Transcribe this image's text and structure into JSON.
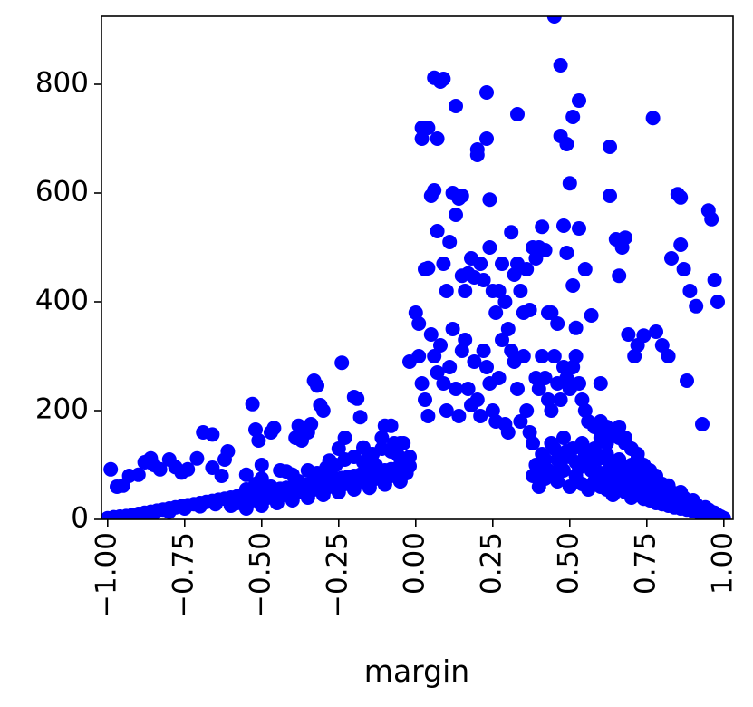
{
  "chart_data": {
    "type": "scatter",
    "xlabel": "margin",
    "ylabel": "",
    "xlim": [
      -1.02,
      1.03
    ],
    "ylim": [
      0,
      925
    ],
    "grid": false,
    "marker_color": "#0000ff",
    "x_ticks": [
      -1.0,
      -0.75,
      -0.5,
      -0.25,
      0.0,
      0.25,
      0.5,
      0.75,
      1.0
    ],
    "x_tick_labels": [
      "−1.00",
      "−0.75",
      "−0.50",
      "−0.25",
      "0.00",
      "0.25",
      "0.50",
      "0.75",
      "1.00"
    ],
    "y_ticks": [
      0,
      200,
      400,
      600,
      800
    ],
    "y_tick_labels": [
      "0",
      "200",
      "400",
      "600",
      "800"
    ],
    "points": [
      [
        -0.99,
        92
      ],
      [
        -0.97,
        60
      ],
      [
        -0.95,
        62
      ],
      [
        -0.93,
        80
      ],
      [
        -0.9,
        82
      ],
      [
        -0.88,
        105
      ],
      [
        -0.86,
        112
      ],
      [
        -0.85,
        100
      ],
      [
        -0.83,
        92
      ],
      [
        -0.8,
        110
      ],
      [
        -0.78,
        96
      ],
      [
        -0.76,
        86
      ],
      [
        -0.74,
        92
      ],
      [
        -0.71,
        112
      ],
      [
        -0.69,
        160
      ],
      [
        -0.66,
        156
      ],
      [
        -0.66,
        95
      ],
      [
        -0.63,
        80
      ],
      [
        -0.62,
        110
      ],
      [
        -0.61,
        125
      ],
      [
        -0.55,
        82
      ],
      [
        -0.53,
        212
      ],
      [
        -0.52,
        165
      ],
      [
        -0.51,
        145
      ],
      [
        -0.5,
        100
      ],
      [
        -0.47,
        160
      ],
      [
        -0.46,
        168
      ],
      [
        -0.44,
        90
      ],
      [
        -0.42,
        88
      ],
      [
        -0.4,
        82
      ],
      [
        -0.39,
        150
      ],
      [
        -0.38,
        172
      ],
      [
        -0.37,
        145
      ],
      [
        -0.35,
        160
      ],
      [
        -0.34,
        175
      ],
      [
        -0.33,
        255
      ],
      [
        -0.32,
        246
      ],
      [
        -0.31,
        210
      ],
      [
        -0.3,
        200
      ],
      [
        -0.28,
        108
      ],
      [
        -0.27,
        78
      ],
      [
        -0.25,
        130
      ],
      [
        -0.24,
        288
      ],
      [
        -0.23,
        150
      ],
      [
        -0.2,
        225
      ],
      [
        -0.19,
        222
      ],
      [
        -0.18,
        188
      ],
      [
        -0.17,
        132
      ],
      [
        -0.15,
        120
      ],
      [
        -0.13,
        100
      ],
      [
        -0.11,
        150
      ],
      [
        -0.1,
        172
      ],
      [
        -0.08,
        172
      ],
      [
        -0.07,
        140
      ],
      [
        -0.06,
        120
      ],
      [
        -0.05,
        112
      ],
      [
        -0.04,
        140
      ],
      [
        -0.03,
        98
      ],
      [
        -0.02,
        290
      ],
      [
        0.0,
        380
      ],
      [
        0.01,
        360
      ],
      [
        0.02,
        700
      ],
      [
        0.02,
        720
      ],
      [
        0.03,
        460
      ],
      [
        0.04,
        462
      ],
      [
        0.04,
        720
      ],
      [
        0.05,
        595
      ],
      [
        0.06,
        605
      ],
      [
        0.06,
        812
      ],
      [
        0.07,
        700
      ],
      [
        0.07,
        530
      ],
      [
        0.08,
        805
      ],
      [
        0.09,
        810
      ],
      [
        0.09,
        470
      ],
      [
        0.1,
        420
      ],
      [
        0.11,
        510
      ],
      [
        0.12,
        600
      ],
      [
        0.13,
        760
      ],
      [
        0.13,
        560
      ],
      [
        0.14,
        590
      ],
      [
        0.15,
        595
      ],
      [
        0.15,
        448
      ],
      [
        0.16,
        420
      ],
      [
        0.17,
        452
      ],
      [
        0.18,
        480
      ],
      [
        0.19,
        445
      ],
      [
        0.2,
        680
      ],
      [
        0.2,
        670
      ],
      [
        0.21,
        470
      ],
      [
        0.22,
        440
      ],
      [
        0.23,
        785
      ],
      [
        0.23,
        700
      ],
      [
        0.24,
        588
      ],
      [
        0.24,
        500
      ],
      [
        0.25,
        420
      ],
      [
        0.26,
        380
      ],
      [
        0.27,
        420
      ],
      [
        0.28,
        470
      ],
      [
        0.29,
        400
      ],
      [
        0.3,
        350
      ],
      [
        0.31,
        528
      ],
      [
        0.32,
        450
      ],
      [
        0.33,
        745
      ],
      [
        0.33,
        470
      ],
      [
        0.34,
        420
      ],
      [
        0.35,
        380
      ],
      [
        0.36,
        460
      ],
      [
        0.37,
        385
      ],
      [
        0.38,
        500
      ],
      [
        0.39,
        480
      ],
      [
        0.4,
        500
      ],
      [
        0.41,
        538
      ],
      [
        0.42,
        495
      ],
      [
        0.43,
        380
      ],
      [
        0.44,
        380
      ],
      [
        0.45,
        925
      ],
      [
        0.46,
        360
      ],
      [
        0.47,
        835
      ],
      [
        0.47,
        705
      ],
      [
        0.48,
        540
      ],
      [
        0.49,
        690
      ],
      [
        0.49,
        490
      ],
      [
        0.5,
        618
      ],
      [
        0.51,
        740
      ],
      [
        0.51,
        430
      ],
      [
        0.52,
        352
      ],
      [
        0.53,
        770
      ],
      [
        0.53,
        535
      ],
      [
        0.55,
        460
      ],
      [
        0.57,
        375
      ],
      [
        0.6,
        250
      ],
      [
        0.63,
        595
      ],
      [
        0.63,
        685
      ],
      [
        0.65,
        515
      ],
      [
        0.66,
        448
      ],
      [
        0.67,
        500
      ],
      [
        0.68,
        518
      ],
      [
        0.69,
        340
      ],
      [
        0.71,
        300
      ],
      [
        0.72,
        320
      ],
      [
        0.74,
        338
      ],
      [
        0.77,
        738
      ],
      [
        0.78,
        345
      ],
      [
        0.8,
        320
      ],
      [
        0.82,
        300
      ],
      [
        0.83,
        480
      ],
      [
        0.85,
        598
      ],
      [
        0.86,
        592
      ],
      [
        0.86,
        505
      ],
      [
        0.87,
        460
      ],
      [
        0.88,
        255
      ],
      [
        0.89,
        420
      ],
      [
        0.91,
        392
      ],
      [
        0.93,
        175
      ],
      [
        0.95,
        568
      ],
      [
        0.96,
        552
      ],
      [
        0.97,
        440
      ],
      [
        0.98,
        400
      ],
      [
        0.01,
        300
      ],
      [
        0.02,
        250
      ],
      [
        0.03,
        220
      ],
      [
        0.04,
        190
      ],
      [
        0.05,
        340
      ],
      [
        0.06,
        300
      ],
      [
        0.07,
        270
      ],
      [
        0.08,
        320
      ],
      [
        0.09,
        250
      ],
      [
        0.1,
        200
      ],
      [
        0.11,
        280
      ],
      [
        0.12,
        350
      ],
      [
        0.13,
        240
      ],
      [
        0.14,
        190
      ],
      [
        0.15,
        310
      ],
      [
        0.16,
        330
      ],
      [
        0.17,
        240
      ],
      [
        0.18,
        210
      ],
      [
        0.19,
        290
      ],
      [
        0.2,
        220
      ],
      [
        0.21,
        190
      ],
      [
        0.22,
        310
      ],
      [
        0.23,
        280
      ],
      [
        0.24,
        250
      ],
      [
        0.25,
        200
      ],
      [
        0.26,
        180
      ],
      [
        0.27,
        260
      ],
      [
        0.28,
        330
      ],
      [
        0.29,
        175
      ],
      [
        0.3,
        160
      ],
      [
        0.31,
        310
      ],
      [
        0.32,
        290
      ],
      [
        0.33,
        240
      ],
      [
        0.34,
        180
      ],
      [
        0.35,
        300
      ],
      [
        0.36,
        200
      ],
      [
        0.37,
        160
      ],
      [
        0.38,
        140
      ],
      [
        0.39,
        260
      ],
      [
        0.4,
        240
      ],
      [
        0.41,
        300
      ],
      [
        0.42,
        260
      ],
      [
        0.43,
        220
      ],
      [
        0.44,
        200
      ],
      [
        0.45,
        300
      ],
      [
        0.46,
        250
      ],
      [
        0.47,
        220
      ],
      [
        0.48,
        280
      ],
      [
        0.49,
        260
      ],
      [
        0.5,
        240
      ],
      [
        0.51,
        280
      ],
      [
        0.52,
        300
      ],
      [
        0.53,
        250
      ],
      [
        0.54,
        220
      ],
      [
        0.55,
        200
      ],
      [
        0.56,
        180
      ],
      [
        0.58,
        170
      ],
      [
        0.6,
        150
      ],
      [
        0.62,
        140
      ],
      [
        0.64,
        160
      ],
      [
        0.66,
        170
      ],
      [
        0.68,
        150
      ],
      [
        0.7,
        130
      ],
      [
        0.72,
        120
      ],
      [
        0.38,
        80
      ],
      [
        0.39,
        100
      ],
      [
        0.4,
        95
      ],
      [
        0.41,
        120
      ],
      [
        0.42,
        110
      ],
      [
        0.43,
        90
      ],
      [
        0.44,
        140
      ],
      [
        0.45,
        130
      ],
      [
        0.46,
        110
      ],
      [
        0.47,
        100
      ],
      [
        0.48,
        150
      ],
      [
        0.49,
        125
      ],
      [
        0.5,
        115
      ],
      [
        0.51,
        130
      ],
      [
        0.52,
        105
      ],
      [
        0.53,
        95
      ],
      [
        0.54,
        140
      ],
      [
        0.55,
        120
      ],
      [
        0.56,
        100
      ],
      [
        0.57,
        90
      ],
      [
        0.58,
        130
      ],
      [
        0.59,
        110
      ],
      [
        0.6,
        85
      ],
      [
        0.61,
        75
      ],
      [
        0.62,
        120
      ],
      [
        0.63,
        100
      ],
      [
        0.64,
        80
      ],
      [
        0.65,
        70
      ],
      [
        0.66,
        110
      ],
      [
        0.67,
        90
      ],
      [
        0.68,
        70
      ],
      [
        0.69,
        60
      ],
      [
        0.7,
        100
      ],
      [
        0.71,
        80
      ],
      [
        0.72,
        65
      ],
      [
        0.73,
        50
      ],
      [
        0.74,
        90
      ],
      [
        0.75,
        70
      ],
      [
        0.76,
        55
      ],
      [
        0.77,
        45
      ],
      [
        0.78,
        80
      ],
      [
        0.79,
        60
      ],
      [
        0.8,
        45
      ],
      [
        0.81,
        40
      ],
      [
        0.82,
        62
      ],
      [
        0.83,
        50
      ],
      [
        0.84,
        40
      ],
      [
        0.85,
        35
      ],
      [
        0.86,
        50
      ],
      [
        0.87,
        40
      ],
      [
        0.88,
        32
      ],
      [
        0.89,
        28
      ],
      [
        0.9,
        35
      ],
      [
        0.91,
        28
      ],
      [
        0.92,
        22
      ],
      [
        0.93,
        20
      ],
      [
        0.94,
        22
      ],
      [
        0.95,
        18
      ],
      [
        0.96,
        14
      ],
      [
        0.97,
        12
      ],
      [
        0.98,
        8
      ],
      [
        0.99,
        5
      ],
      [
        1.0,
        2
      ],
      [
        0.4,
        60
      ],
      [
        0.42,
        75
      ],
      [
        0.44,
        85
      ],
      [
        0.46,
        70
      ],
      [
        0.48,
        90
      ],
      [
        0.5,
        60
      ],
      [
        0.52,
        80
      ],
      [
        0.54,
        65
      ],
      [
        0.56,
        55
      ],
      [
        0.58,
        70
      ],
      [
        0.6,
        60
      ],
      [
        0.62,
        55
      ],
      [
        0.64,
        45
      ],
      [
        0.66,
        60
      ],
      [
        0.68,
        50
      ],
      [
        0.7,
        40
      ],
      [
        0.72,
        45
      ],
      [
        0.74,
        38
      ],
      [
        0.76,
        35
      ],
      [
        0.78,
        30
      ],
      [
        0.8,
        28
      ],
      [
        0.82,
        25
      ],
      [
        0.84,
        22
      ],
      [
        0.86,
        20
      ],
      [
        0.88,
        18
      ],
      [
        0.9,
        15
      ],
      [
        0.92,
        12
      ],
      [
        0.94,
        10
      ],
      [
        0.96,
        8
      ],
      [
        -1.0,
        2
      ],
      [
        -0.98,
        4
      ],
      [
        -0.96,
        5
      ],
      [
        -0.94,
        6
      ],
      [
        -0.92,
        8
      ],
      [
        -0.9,
        10
      ],
      [
        -0.88,
        12
      ],
      [
        -0.86,
        14
      ],
      [
        -0.84,
        16
      ],
      [
        -0.82,
        18
      ],
      [
        -0.8,
        20
      ],
      [
        -0.78,
        22
      ],
      [
        -0.76,
        24
      ],
      [
        -0.74,
        26
      ],
      [
        -0.72,
        28
      ],
      [
        -0.7,
        30
      ],
      [
        -0.68,
        32
      ],
      [
        -0.66,
        34
      ],
      [
        -0.64,
        36
      ],
      [
        -0.62,
        38
      ],
      [
        -0.6,
        40
      ],
      [
        -0.58,
        42
      ],
      [
        -0.56,
        44
      ],
      [
        -0.54,
        46
      ],
      [
        -0.52,
        48
      ],
      [
        -0.5,
        50
      ],
      [
        -0.48,
        52
      ],
      [
        -0.46,
        54
      ],
      [
        -0.44,
        56
      ],
      [
        -0.42,
        58
      ],
      [
        -0.4,
        60
      ],
      [
        -0.38,
        62
      ],
      [
        -0.36,
        64
      ],
      [
        -0.34,
        66
      ],
      [
        -0.32,
        68
      ],
      [
        -0.3,
        70
      ],
      [
        -0.28,
        72
      ],
      [
        -0.26,
        74
      ],
      [
        -0.24,
        76
      ],
      [
        -0.22,
        78
      ],
      [
        -0.2,
        80
      ],
      [
        -0.18,
        82
      ],
      [
        -0.16,
        84
      ],
      [
        -0.14,
        86
      ],
      [
        -0.12,
        88
      ],
      [
        -0.1,
        90
      ],
      [
        -0.08,
        92
      ],
      [
        -0.06,
        94
      ],
      [
        -0.04,
        96
      ],
      [
        -0.02,
        98
      ],
      [
        -0.6,
        25
      ],
      [
        -0.58,
        30
      ],
      [
        -0.55,
        20
      ],
      [
        -0.53,
        35
      ],
      [
        -0.5,
        25
      ],
      [
        -0.48,
        40
      ],
      [
        -0.45,
        30
      ],
      [
        -0.43,
        45
      ],
      [
        -0.4,
        35
      ],
      [
        -0.38,
        50
      ],
      [
        -0.35,
        40
      ],
      [
        -0.33,
        55
      ],
      [
        -0.3,
        45
      ],
      [
        -0.28,
        60
      ],
      [
        -0.25,
        50
      ],
      [
        -0.23,
        65
      ],
      [
        -0.2,
        55
      ],
      [
        -0.18,
        70
      ],
      [
        -0.15,
        60
      ],
      [
        -0.13,
        75
      ],
      [
        -0.1,
        65
      ],
      [
        -0.08,
        80
      ],
      [
        -0.05,
        70
      ],
      [
        -0.03,
        85
      ],
      [
        -0.55,
        55
      ],
      [
        -0.52,
        65
      ],
      [
        -0.5,
        75
      ],
      [
        -0.47,
        60
      ],
      [
        -0.44,
        50
      ],
      [
        -0.41,
        55
      ],
      [
        -0.38,
        70
      ],
      [
        -0.35,
        90
      ],
      [
        -0.32,
        85
      ],
      [
        -0.29,
        95
      ],
      [
        -0.26,
        100
      ],
      [
        -0.23,
        110
      ],
      [
        -0.2,
        115
      ],
      [
        -0.17,
        105
      ],
      [
        -0.14,
        120
      ],
      [
        -0.11,
        130
      ],
      [
        -0.08,
        125
      ],
      [
        -0.05,
        140
      ],
      [
        -0.02,
        115
      ],
      [
        -0.9,
        6
      ],
      [
        -0.85,
        10
      ],
      [
        -0.8,
        14
      ],
      [
        -0.75,
        20
      ],
      [
        -0.7,
        24
      ],
      [
        -0.65,
        28
      ],
      [
        -0.6,
        32
      ],
      [
        -0.55,
        38
      ],
      [
        -0.5,
        44
      ],
      [
        -0.45,
        40
      ],
      [
        -0.4,
        46
      ],
      [
        -0.35,
        52
      ],
      [
        -0.3,
        48
      ],
      [
        -0.25,
        56
      ],
      [
        -0.2,
        60
      ],
      [
        -0.15,
        58
      ],
      [
        -0.1,
        64
      ],
      [
        -0.05,
        70
      ],
      [
        0.6,
        180
      ],
      [
        0.62,
        170
      ],
      [
        0.64,
        160
      ],
      [
        0.66,
        150
      ],
      [
        0.68,
        140
      ],
      [
        0.7,
        130
      ],
      [
        0.72,
        110
      ],
      [
        0.74,
        100
      ],
      [
        0.76,
        90
      ],
      [
        0.78,
        75
      ],
      [
        0.8,
        65
      ],
      [
        0.82,
        55
      ],
      [
        0.84,
        48
      ],
      [
        0.86,
        40
      ],
      [
        0.88,
        34
      ],
      [
        0.9,
        26
      ],
      [
        0.92,
        20
      ],
      [
        0.94,
        14
      ],
      [
        0.96,
        10
      ],
      [
        0.98,
        6
      ]
    ]
  }
}
